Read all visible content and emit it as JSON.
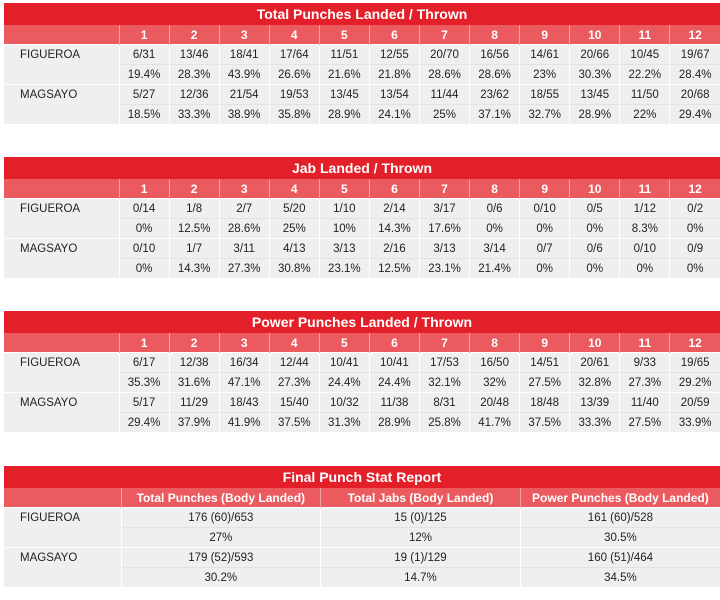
{
  "rounds": [
    "1",
    "2",
    "3",
    "4",
    "5",
    "6",
    "7",
    "8",
    "9",
    "10",
    "11",
    "12"
  ],
  "total": {
    "title": "Total Punches Landed / Thrown",
    "fighters": [
      {
        "name": "FIGUEROA",
        "counts": [
          "6/31",
          "13/46",
          "18/41",
          "17/64",
          "11/51",
          "12/55",
          "20/70",
          "16/56",
          "14/61",
          "20/66",
          "10/45",
          "19/67"
        ],
        "pcts": [
          "19.4%",
          "28.3%",
          "43.9%",
          "26.6%",
          "21.6%",
          "21.8%",
          "28.6%",
          "28.6%",
          "23%",
          "30.3%",
          "22.2%",
          "28.4%"
        ]
      },
      {
        "name": "MAGSAYO",
        "counts": [
          "5/27",
          "12/36",
          "21/54",
          "19/53",
          "13/45",
          "13/54",
          "11/44",
          "23/62",
          "18/55",
          "13/45",
          "11/50",
          "20/68"
        ],
        "pcts": [
          "18.5%",
          "33.3%",
          "38.9%",
          "35.8%",
          "28.9%",
          "24.1%",
          "25%",
          "37.1%",
          "32.7%",
          "28.9%",
          "22%",
          "29.4%"
        ]
      }
    ]
  },
  "jab": {
    "title": "Jab Landed / Thrown",
    "fighters": [
      {
        "name": "FIGUEROA",
        "counts": [
          "0/14",
          "1/8",
          "2/7",
          "5/20",
          "1/10",
          "2/14",
          "3/17",
          "0/6",
          "0/10",
          "0/5",
          "1/12",
          "0/2"
        ],
        "pcts": [
          "0%",
          "12.5%",
          "28.6%",
          "25%",
          "10%",
          "14.3%",
          "17.6%",
          "0%",
          "0%",
          "0%",
          "8.3%",
          "0%"
        ]
      },
      {
        "name": "MAGSAYO",
        "counts": [
          "0/10",
          "1/7",
          "3/11",
          "4/13",
          "3/13",
          "2/16",
          "3/13",
          "3/14",
          "0/7",
          "0/6",
          "0/10",
          "0/9"
        ],
        "pcts": [
          "0%",
          "14.3%",
          "27.3%",
          "30.8%",
          "23.1%",
          "12.5%",
          "23.1%",
          "21.4%",
          "0%",
          "0%",
          "0%",
          "0%"
        ]
      }
    ]
  },
  "power": {
    "title": "Power Punches Landed / Thrown",
    "fighters": [
      {
        "name": "FIGUEROA",
        "counts": [
          "6/17",
          "12/38",
          "16/34",
          "12/44",
          "10/41",
          "10/41",
          "17/53",
          "16/50",
          "14/51",
          "20/61",
          "9/33",
          "19/65"
        ],
        "pcts": [
          "35.3%",
          "31.6%",
          "47.1%",
          "27.3%",
          "24.4%",
          "24.4%",
          "32.1%",
          "32%",
          "27.5%",
          "32.8%",
          "27.3%",
          "29.2%"
        ]
      },
      {
        "name": "MAGSAYO",
        "counts": [
          "5/17",
          "11/29",
          "18/43",
          "15/40",
          "10/32",
          "11/38",
          "8/31",
          "20/48",
          "18/48",
          "13/39",
          "11/40",
          "20/59"
        ],
        "pcts": [
          "29.4%",
          "37.9%",
          "41.9%",
          "37.5%",
          "31.3%",
          "28.9%",
          "25.8%",
          "41.7%",
          "37.5%",
          "33.3%",
          "27.5%",
          "33.9%"
        ]
      }
    ]
  },
  "final": {
    "title": "Final Punch Stat Report",
    "headers": [
      "Total Punches (Body Landed)",
      "Total Jabs (Body Landed)",
      "Power Punches (Body Landed)"
    ],
    "fighters": [
      {
        "name": "FIGUEROA",
        "counts": [
          "176 (60)/653",
          "15 (0)/125",
          "161 (60)/528"
        ],
        "pcts": [
          "27%",
          "12%",
          "30.5%"
        ]
      },
      {
        "name": "MAGSAYO",
        "counts": [
          "179 (52)/593",
          "19 (1)/129",
          "160 (51)/464"
        ],
        "pcts": [
          "30.2%",
          "14.7%",
          "34.5%"
        ]
      }
    ]
  }
}
